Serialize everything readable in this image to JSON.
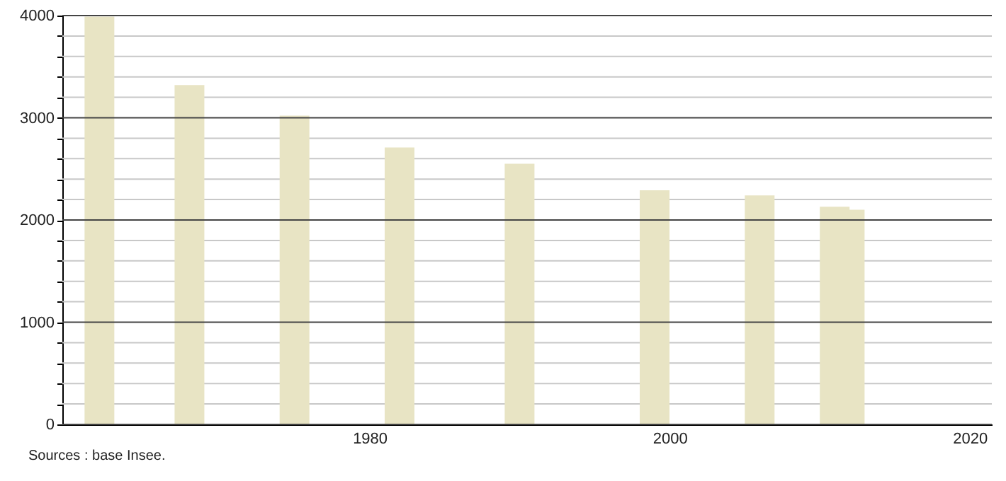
{
  "chart_data": {
    "type": "bar",
    "annotations": [
      "Sources : base Insee."
    ],
    "x": [
      1962,
      1968,
      1975,
      1982,
      1990,
      1999,
      2006,
      2011,
      2012
    ],
    "values": [
      3990,
      3320,
      3020,
      2710,
      2550,
      2290,
      2240,
      2130,
      2100
    ],
    "color": "#e8e4c4",
    "xlim": [
      1960,
      2021
    ],
    "xticks": [
      1980,
      2000,
      2020
    ],
    "ylim": [
      0,
      4000
    ],
    "yticks": [
      0,
      {
        "value": 200,
        "label": null
      },
      {
        "value": 400,
        "label": null
      },
      {
        "value": 600,
        "label": null
      },
      {
        "value": 800,
        "label": null
      },
      1000,
      {
        "value": 1200,
        "label": null
      },
      {
        "value": 1400,
        "label": null
      },
      {
        "value": 1600,
        "label": null
      },
      {
        "value": 1800,
        "label": null
      },
      2000,
      {
        "value": 2200,
        "label": null
      },
      {
        "value": 2400,
        "label": null
      },
      {
        "value": 2600,
        "label": null
      },
      {
        "value": 2800,
        "label": null
      },
      3000,
      {
        "value": 3200,
        "label": null
      },
      {
        "value": 3400,
        "label": null
      },
      {
        "value": 3600,
        "label": null
      },
      {
        "value": 3800,
        "label": null
      },
      4000
    ],
    "grid": true
  }
}
